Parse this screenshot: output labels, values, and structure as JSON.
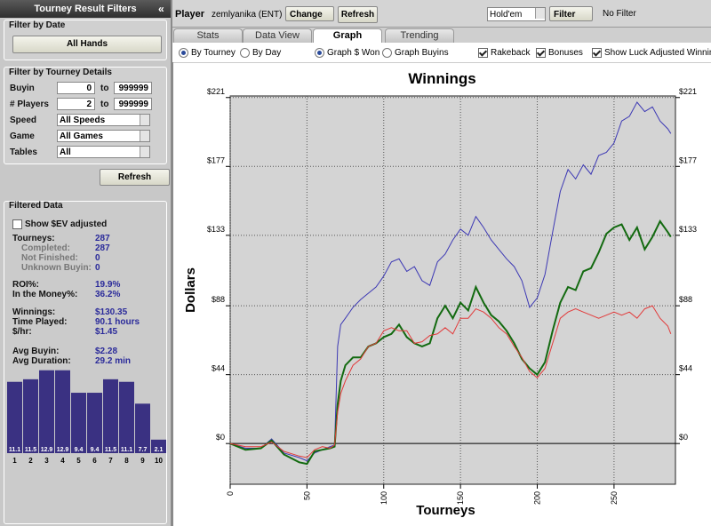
{
  "sidebar": {
    "title": "Tourney Result Filters",
    "collapse": "«",
    "date_section": "Filter by Date",
    "all_hands": "All Hands",
    "details_section": "Filter by Tourney Details",
    "to": "to",
    "buyin_label": "Buyin",
    "buyin_from": "0",
    "buyin_to": "999999",
    "players_label": "# Players",
    "players_from": "2",
    "players_to": "999999",
    "speed_label": "Speed",
    "speed": "All Speeds",
    "game_label": "Game",
    "game": "All Games",
    "tables_label": "Tables",
    "tables": "All",
    "refresh": "Refresh",
    "filtered_section": "Filtered Data",
    "show_ev": "Show $EV adjusted",
    "stats": [
      [
        {
          "label": "Tourneys:",
          "value": "287"
        },
        {
          "label": "Completed:",
          "value": "287"
        },
        {
          "label": "Not Finished:",
          "value": "0"
        },
        {
          "label": "Unknown Buyin:",
          "value": "0"
        }
      ],
      [
        {
          "label": "ROI%:",
          "value": "19.9%"
        },
        {
          "label": "In the Money%:",
          "value": "36.2%"
        }
      ],
      [
        {
          "label": "Winnings:",
          "value": "$130.35"
        },
        {
          "label": "Time Played:",
          "value": "90.1 hours"
        },
        {
          "label": "$/hr:",
          "value": "$1.45"
        }
      ],
      [
        {
          "label": "Avg Buyin:",
          "value": "$2.28"
        },
        {
          "label": "Avg Duration:",
          "value": "29.2 min"
        }
      ]
    ]
  },
  "toolbar": {
    "player_label": "Player",
    "player": "zemlyanika (ENT)",
    "change": "Change",
    "refresh": "Refresh",
    "game": "Hold'em",
    "filter": "Filter",
    "filter_status": "No Filter"
  },
  "tabs": [
    {
      "label": "Stats"
    },
    {
      "label": "Data View"
    },
    {
      "label": "Graph",
      "active": true
    },
    {
      "label": "Trending"
    }
  ],
  "options": [
    {
      "label": "By Tourney",
      "kind": "radio",
      "checked": true
    },
    {
      "label": "By Day",
      "kind": "radio",
      "checked": false
    },
    {
      "label": "Graph $ Won",
      "kind": "radio",
      "checked": true
    },
    {
      "label": "Graph Buyins",
      "kind": "radio",
      "checked": false
    },
    {
      "label": "Rakeback",
      "kind": "checkbox",
      "checked": true
    },
    {
      "label": "Bonuses",
      "kind": "checkbox",
      "checked": true
    },
    {
      "label": "Show Luck Adjusted Winnings",
      "kind": "checkbox",
      "checked": true
    }
  ],
  "chart_data": [
    {
      "type": "line",
      "title": "Winnings",
      "x_label": "Tourneys",
      "y_label": "Dollars",
      "x": [
        0,
        10,
        20,
        27,
        35,
        45,
        50,
        55,
        60,
        65,
        68,
        70,
        72,
        75,
        80,
        85,
        90,
        95,
        100,
        105,
        110,
        115,
        120,
        125,
        130,
        135,
        140,
        145,
        150,
        155,
        160,
        165,
        170,
        175,
        180,
        185,
        190,
        195,
        200,
        205,
        210,
        215,
        220,
        225,
        230,
        235,
        240,
        245,
        250,
        255,
        260,
        265,
        270,
        275,
        280,
        285,
        287
      ],
      "series": [
        {
          "color": "#3c38b4",
          "values": [
            0,
            -3,
            -3,
            3,
            -6,
            -9,
            -11,
            -6,
            -4,
            -2,
            -1,
            62,
            76,
            80,
            87,
            92,
            96,
            100,
            107,
            116,
            118,
            110,
            113,
            104,
            101,
            116,
            121,
            130,
            137,
            133,
            145,
            138,
            130,
            124,
            118,
            113,
            104,
            87,
            93,
            108,
            135,
            161,
            175,
            169,
            178,
            172,
            184,
            186,
            192,
            206,
            209,
            218,
            212,
            215,
            206,
            201,
            198
          ]
        },
        {
          "color": "#136a10",
          "values": [
            0,
            -4,
            -3,
            2,
            -7,
            -12,
            -13,
            -5,
            -4,
            -3,
            -2,
            25,
            40,
            50,
            55,
            55,
            62,
            64,
            68,
            70,
            76,
            68,
            64,
            62,
            64,
            80,
            88,
            80,
            90,
            85,
            100,
            90,
            82,
            78,
            72,
            64,
            54,
            48,
            44,
            52,
            72,
            90,
            100,
            98,
            110,
            112,
            122,
            134,
            138,
            140,
            130,
            138,
            124,
            132,
            142,
            135,
            132
          ]
        },
        {
          "color": "#e23a3a",
          "values": [
            0,
            -2,
            -2,
            1,
            -5,
            -8,
            -9,
            -4,
            -2,
            -3,
            -1,
            20,
            32,
            40,
            50,
            54,
            62,
            64,
            72,
            74,
            72,
            72,
            64,
            65,
            69,
            70,
            74,
            70,
            80,
            80,
            86,
            84,
            80,
            74,
            70,
            62,
            55,
            46,
            42,
            48,
            64,
            80,
            84,
            86,
            84,
            82,
            80,
            82,
            84,
            82,
            84,
            80,
            86,
            88,
            80,
            75,
            70
          ]
        }
      ],
      "xlim": [
        0,
        290
      ],
      "ylim": [
        -26,
        222
      ],
      "xticks": [
        0,
        50,
        100,
        150,
        200,
        250
      ],
      "yticks": [
        {
          "value": 0,
          "label": "$0"
        },
        {
          "value": 44,
          "label": "$44"
        },
        {
          "value": 88,
          "label": "$88"
        },
        {
          "value": 133,
          "label": "$133"
        },
        {
          "value": 177,
          "label": "$177"
        },
        {
          "value": 221,
          "label": "$221"
        }
      ],
      "grid": true,
      "right_axis": true
    },
    {
      "type": "bar",
      "categories": [
        "1",
        "2",
        "3",
        "4",
        "5",
        "6",
        "7",
        "8",
        "9",
        "10"
      ],
      "values": [
        11.1,
        11.5,
        12.9,
        12.9,
        9.4,
        9.4,
        11.5,
        11.1,
        7.7,
        2.1
      ],
      "color": "#3a3182",
      "ylim": [
        0,
        13
      ]
    }
  ]
}
